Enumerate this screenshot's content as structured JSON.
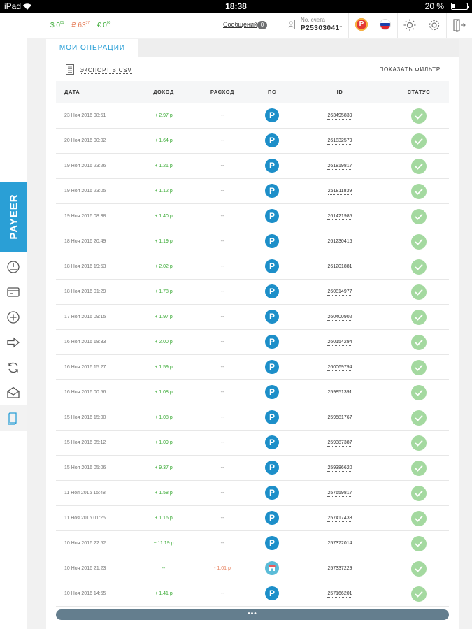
{
  "statusbar": {
    "device": "iPad",
    "time": "18:38",
    "battery": "20 %",
    "battery_level": 0.2
  },
  "header": {
    "balances": [
      {
        "symbol": "$",
        "int": "0",
        "frac": "01"
      },
      {
        "symbol": "₽",
        "int": "63",
        "frac": "37"
      },
      {
        "symbol": "€",
        "int": "0",
        "frac": "00"
      }
    ],
    "messages_label": "Сообщений",
    "messages_count": "0",
    "account_label": "No. счета",
    "account_number": "P25303041",
    "coin_glyph": "P",
    "flag_colors": [
      "#ffffff",
      "#1c3faa",
      "#e0262d"
    ]
  },
  "sidebar": {
    "brand": "PAYEER",
    "items": [
      "dashboard-icon",
      "wallet-icon",
      "add-funds-icon",
      "transfer-icon",
      "exchange-icon",
      "mail-icon",
      "history-icon"
    ],
    "active": "history-icon"
  },
  "main": {
    "tab_label": "МОИ ОПЕРАЦИИ",
    "export_label": "ЭКСПОРТ В CSV",
    "filter_label": "ПОКАЗАТЬ ФИЛЬТР",
    "columns": [
      "ДАТА",
      "ДОХОД",
      "РАСХОД",
      "ПС",
      "ID",
      "СТАТУС"
    ],
    "rows": [
      {
        "date": "23 Ноя 2016 08:51",
        "income": "+ 2.97 р",
        "expense": "--",
        "ps": "P",
        "id": "263495839"
      },
      {
        "date": "20 Ноя 2016 00:02",
        "income": "+ 1.64 р",
        "expense": "--",
        "ps": "P",
        "id": "261832579"
      },
      {
        "date": "19 Ноя 2016 23:26",
        "income": "+ 1.21 р",
        "expense": "--",
        "ps": "P",
        "id": "261819817"
      },
      {
        "date": "19 Ноя 2016 23:05",
        "income": "+ 1.12 р",
        "expense": "--",
        "ps": "P",
        "id": "261811839"
      },
      {
        "date": "19 Ноя 2016 08:38",
        "income": "+ 1.40 р",
        "expense": "--",
        "ps": "P",
        "id": "261421985"
      },
      {
        "date": "18 Ноя 2016 20:49",
        "income": "+ 1.19 р",
        "expense": "--",
        "ps": "P",
        "id": "261230416"
      },
      {
        "date": "18 Ноя 2016 19:53",
        "income": "+ 2.02 р",
        "expense": "--",
        "ps": "P",
        "id": "261201881"
      },
      {
        "date": "18 Ноя 2016 01:29",
        "income": "+ 1.78 р",
        "expense": "--",
        "ps": "P",
        "id": "260814977"
      },
      {
        "date": "17 Ноя 2016 09:15",
        "income": "+ 1.97 р",
        "expense": "--",
        "ps": "P",
        "id": "260400902"
      },
      {
        "date": "16 Ноя 2016 18:33",
        "income": "+ 2.00 р",
        "expense": "--",
        "ps": "P",
        "id": "260154294"
      },
      {
        "date": "16 Ноя 2016 15:27",
        "income": "+ 1.59 р",
        "expense": "--",
        "ps": "P",
        "id": "260069794"
      },
      {
        "date": "16 Ноя 2016 00:56",
        "income": "+ 1.08 р",
        "expense": "--",
        "ps": "P",
        "id": "259851391"
      },
      {
        "date": "15 Ноя 2016 15:00",
        "income": "+ 1.08 р",
        "expense": "--",
        "ps": "P",
        "id": "259581767"
      },
      {
        "date": "15 Ноя 2016 05:12",
        "income": "+ 1.09 р",
        "expense": "--",
        "ps": "P",
        "id": "259387387"
      },
      {
        "date": "15 Ноя 2016 05:06",
        "income": "+ 9.37 р",
        "expense": "--",
        "ps": "P",
        "id": "259386620"
      },
      {
        "date": "11 Ноя 2016 15:48",
        "income": "+ 1.58 р",
        "expense": "--",
        "ps": "P",
        "id": "257659817"
      },
      {
        "date": "11 Ноя 2016 01:25",
        "income": "+ 1.16 р",
        "expense": "--",
        "ps": "P",
        "id": "257417433"
      },
      {
        "date": "10 Ноя 2016 22:52",
        "income": "+ 11.19 р",
        "expense": "--",
        "ps": "P",
        "id": "257372014"
      },
      {
        "date": "10 Ноя 2016 21:23",
        "income": "--",
        "expense": "- 1.01 р",
        "ps": "shop",
        "id": "257337229"
      },
      {
        "date": "10 Ноя 2016 14:55",
        "income": "+ 1.41 р",
        "expense": "--",
        "ps": "P",
        "id": "257166201"
      }
    ],
    "load_more_label": "•••"
  },
  "colors": {
    "accent": "#2a9fd6",
    "income": "#3aaa35",
    "expense": "#e67e5a",
    "status_ok": "#a4d9a0"
  }
}
